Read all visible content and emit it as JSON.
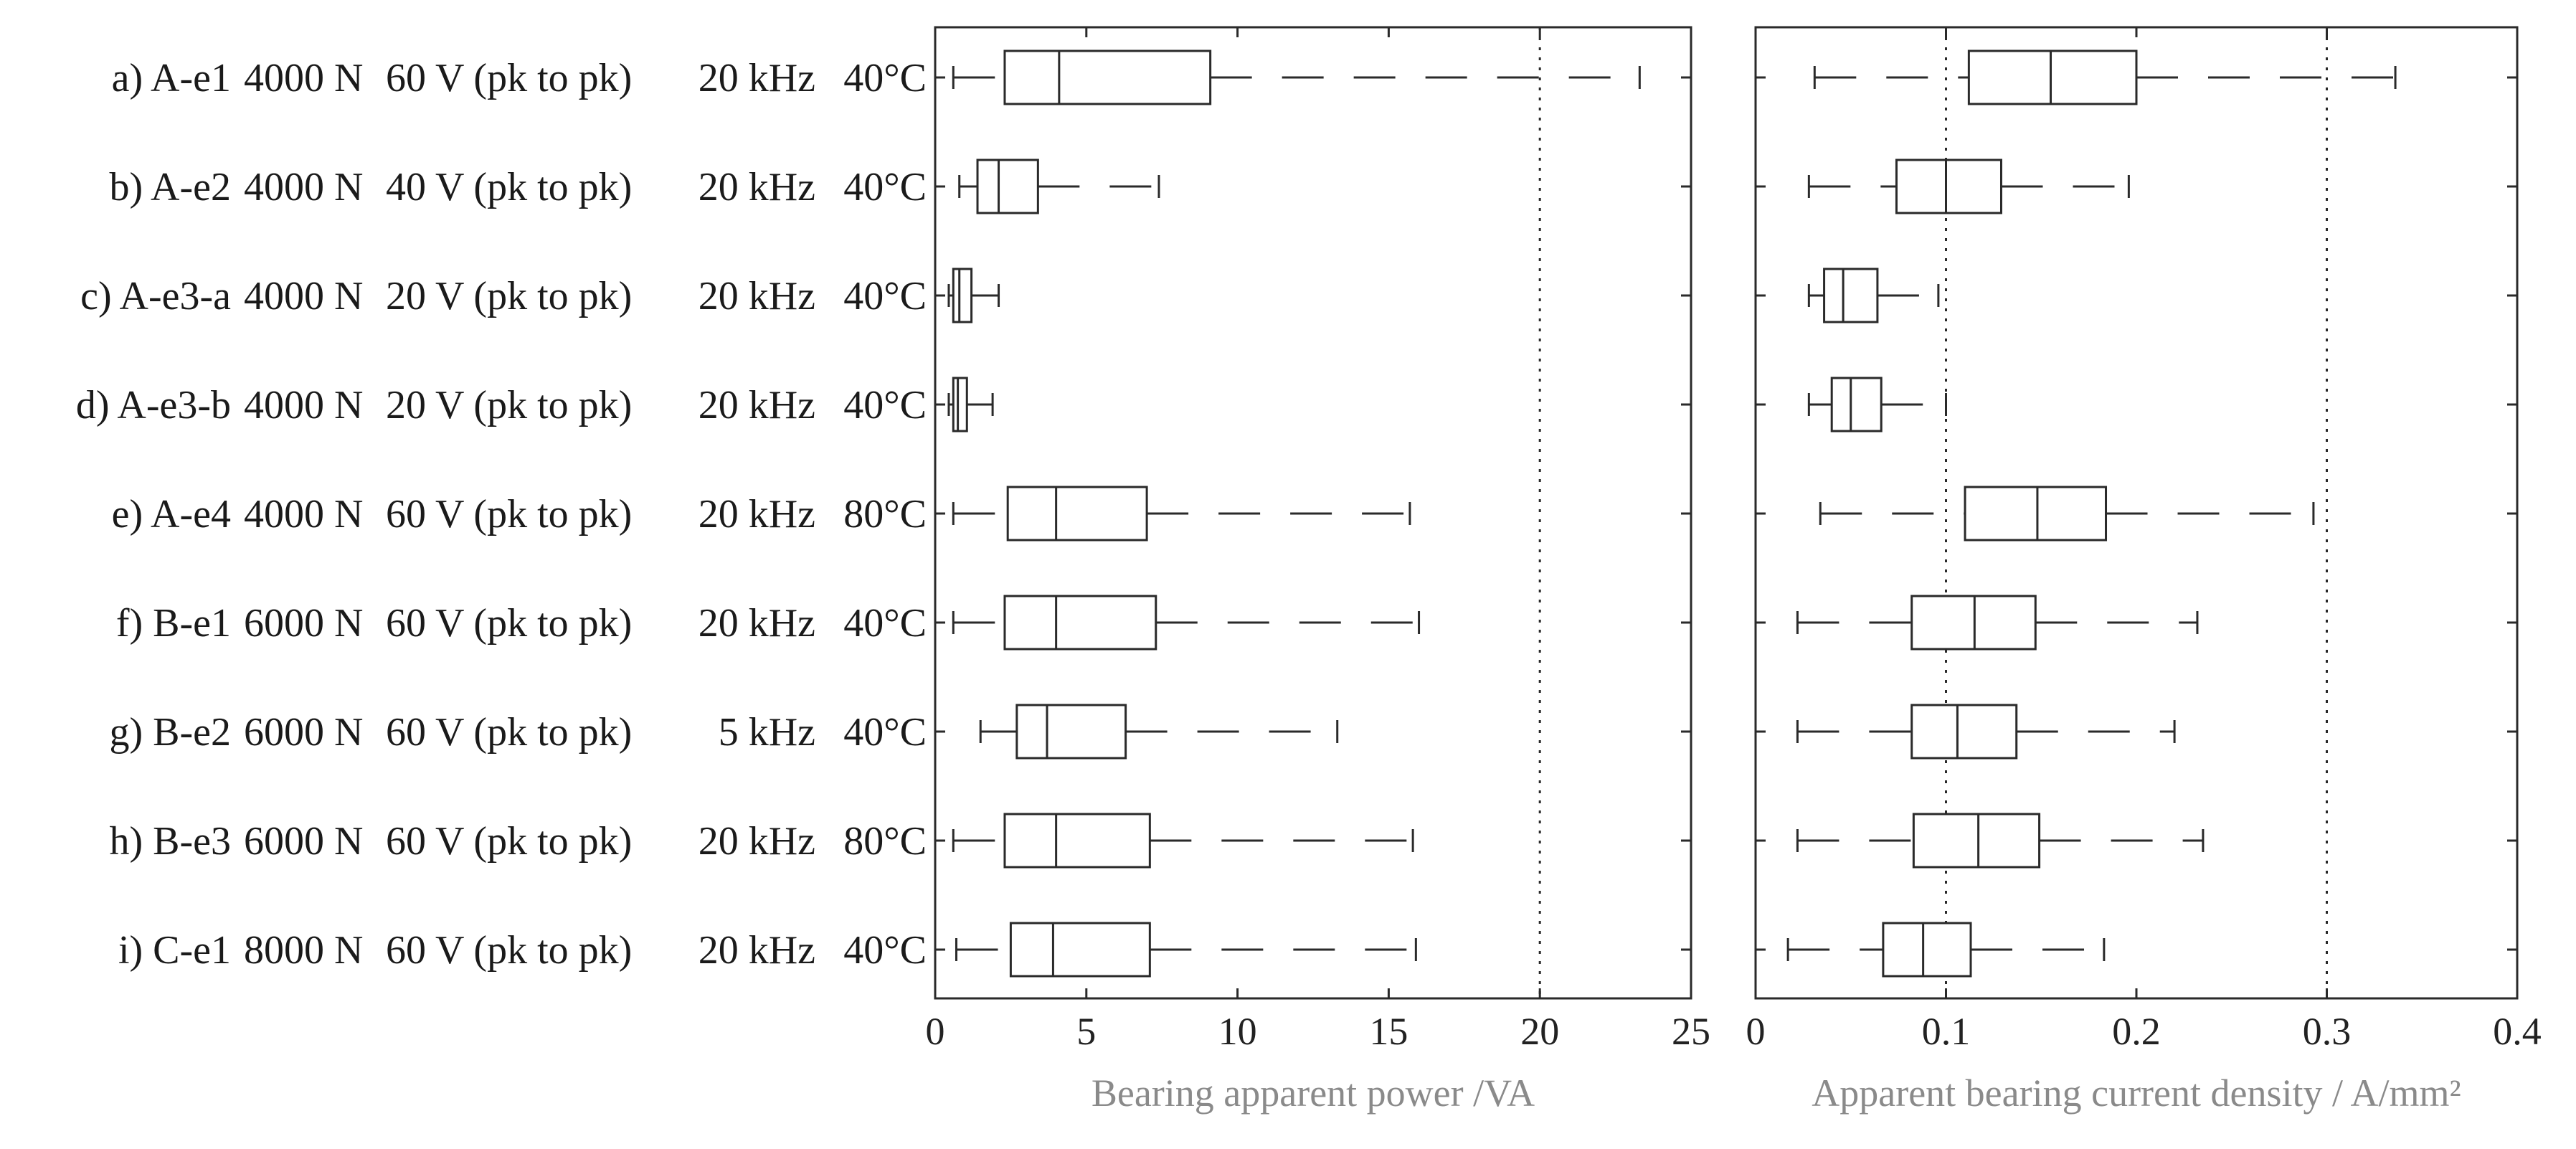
{
  "chart_data": {
    "type": "boxplot",
    "orientation": "horizontal",
    "rows": [
      {
        "name": "a) A-e1",
        "force": "4000 N",
        "voltage": "60 V (pk to pk)",
        "frequency": "20 kHz",
        "temperature": "40°C"
      },
      {
        "name": "b) A-e2",
        "force": "4000 N",
        "voltage": "40 V (pk to pk)",
        "frequency": "20 kHz",
        "temperature": "40°C"
      },
      {
        "name": "c) A-e3-a",
        "force": "4000 N",
        "voltage": "20 V (pk to pk)",
        "frequency": "20 kHz",
        "temperature": "40°C"
      },
      {
        "name": "d) A-e3-b",
        "force": "4000 N",
        "voltage": "20 V (pk to pk)",
        "frequency": "20 kHz",
        "temperature": "40°C"
      },
      {
        "name": "e) A-e4",
        "force": "4000 N",
        "voltage": "60 V (pk to pk)",
        "frequency": "20 kHz",
        "temperature": "80°C"
      },
      {
        "name": "f) B-e1",
        "force": "6000 N",
        "voltage": "60 V (pk to pk)",
        "frequency": "20 kHz",
        "temperature": "40°C"
      },
      {
        "name": "g) B-e2",
        "force": "6000 N",
        "voltage": "60 V (pk to pk)",
        "frequency": "5 kHz",
        "temperature": "40°C"
      },
      {
        "name": "h) B-e3",
        "force": "6000 N",
        "voltage": "60 V (pk to pk)",
        "frequency": "20 kHz",
        "temperature": "80°C"
      },
      {
        "name": "i) C-e1",
        "force": "8000 N",
        "voltage": "60 V (pk to pk)",
        "frequency": "20 kHz",
        "temperature": "40°C"
      }
    ],
    "panels": [
      {
        "xlabel": "Bearing apparent power /VA",
        "xlim": [
          0,
          25
        ],
        "xticks": [
          0,
          5,
          10,
          15,
          20,
          25
        ],
        "xtick_labels": [
          "0",
          "5",
          "10",
          "15",
          "20",
          "25"
        ],
        "reference_line": 20,
        "boxes": [
          {
            "whisker_low": 0.6,
            "q1": 2.3,
            "median": 4.1,
            "q3": 9.1,
            "whisker_high": 23.3
          },
          {
            "whisker_low": 0.8,
            "q1": 1.4,
            "median": 2.1,
            "q3": 3.4,
            "whisker_high": 7.4
          },
          {
            "whisker_low": 0.45,
            "q1": 0.6,
            "median": 0.8,
            "q3": 1.2,
            "whisker_high": 2.1
          },
          {
            "whisker_low": 0.45,
            "q1": 0.6,
            "median": 0.75,
            "q3": 1.05,
            "whisker_high": 1.9
          },
          {
            "whisker_low": 0.6,
            "q1": 2.4,
            "median": 4.0,
            "q3": 7.0,
            "whisker_high": 15.7
          },
          {
            "whisker_low": 0.6,
            "q1": 2.3,
            "median": 4.0,
            "q3": 7.3,
            "whisker_high": 16.0
          },
          {
            "whisker_low": 1.5,
            "q1": 2.7,
            "median": 3.7,
            "q3": 6.3,
            "whisker_high": 13.3
          },
          {
            "whisker_low": 0.6,
            "q1": 2.3,
            "median": 4.0,
            "q3": 7.1,
            "whisker_high": 15.8
          },
          {
            "whisker_low": 0.7,
            "q1": 2.5,
            "median": 3.9,
            "q3": 7.1,
            "whisker_high": 15.9
          }
        ]
      },
      {
        "xlabel": "Apparent bearing current density / A/mm²",
        "xlim": [
          0,
          0.4
        ],
        "xticks": [
          0,
          0.1,
          0.2,
          0.3,
          0.4
        ],
        "xtick_labels": [
          "0",
          "0.1",
          "0.2",
          "0.3",
          "0.4"
        ],
        "reference_lines": [
          0.1,
          0.3
        ],
        "boxes": [
          {
            "whisker_low": 0.031,
            "q1": 0.112,
            "median": 0.155,
            "q3": 0.2,
            "whisker_high": 0.336
          },
          {
            "whisker_low": 0.028,
            "q1": 0.074,
            "median": 0.1,
            "q3": 0.129,
            "whisker_high": 0.196
          },
          {
            "whisker_low": 0.028,
            "q1": 0.036,
            "median": 0.046,
            "q3": 0.064,
            "whisker_high": 0.096
          },
          {
            "whisker_low": 0.028,
            "q1": 0.04,
            "median": 0.05,
            "q3": 0.066,
            "whisker_high": 0.1
          },
          {
            "whisker_low": 0.034,
            "q1": 0.11,
            "median": 0.148,
            "q3": 0.184,
            "whisker_high": 0.293
          },
          {
            "whisker_low": 0.022,
            "q1": 0.082,
            "median": 0.115,
            "q3": 0.147,
            "whisker_high": 0.232
          },
          {
            "whisker_low": 0.022,
            "q1": 0.082,
            "median": 0.106,
            "q3": 0.137,
            "whisker_high": 0.22
          },
          {
            "whisker_low": 0.022,
            "q1": 0.083,
            "median": 0.117,
            "q3": 0.149,
            "whisker_high": 0.235
          },
          {
            "whisker_low": 0.017,
            "q1": 0.067,
            "median": 0.088,
            "q3": 0.113,
            "whisker_high": 0.183
          }
        ]
      }
    ]
  }
}
